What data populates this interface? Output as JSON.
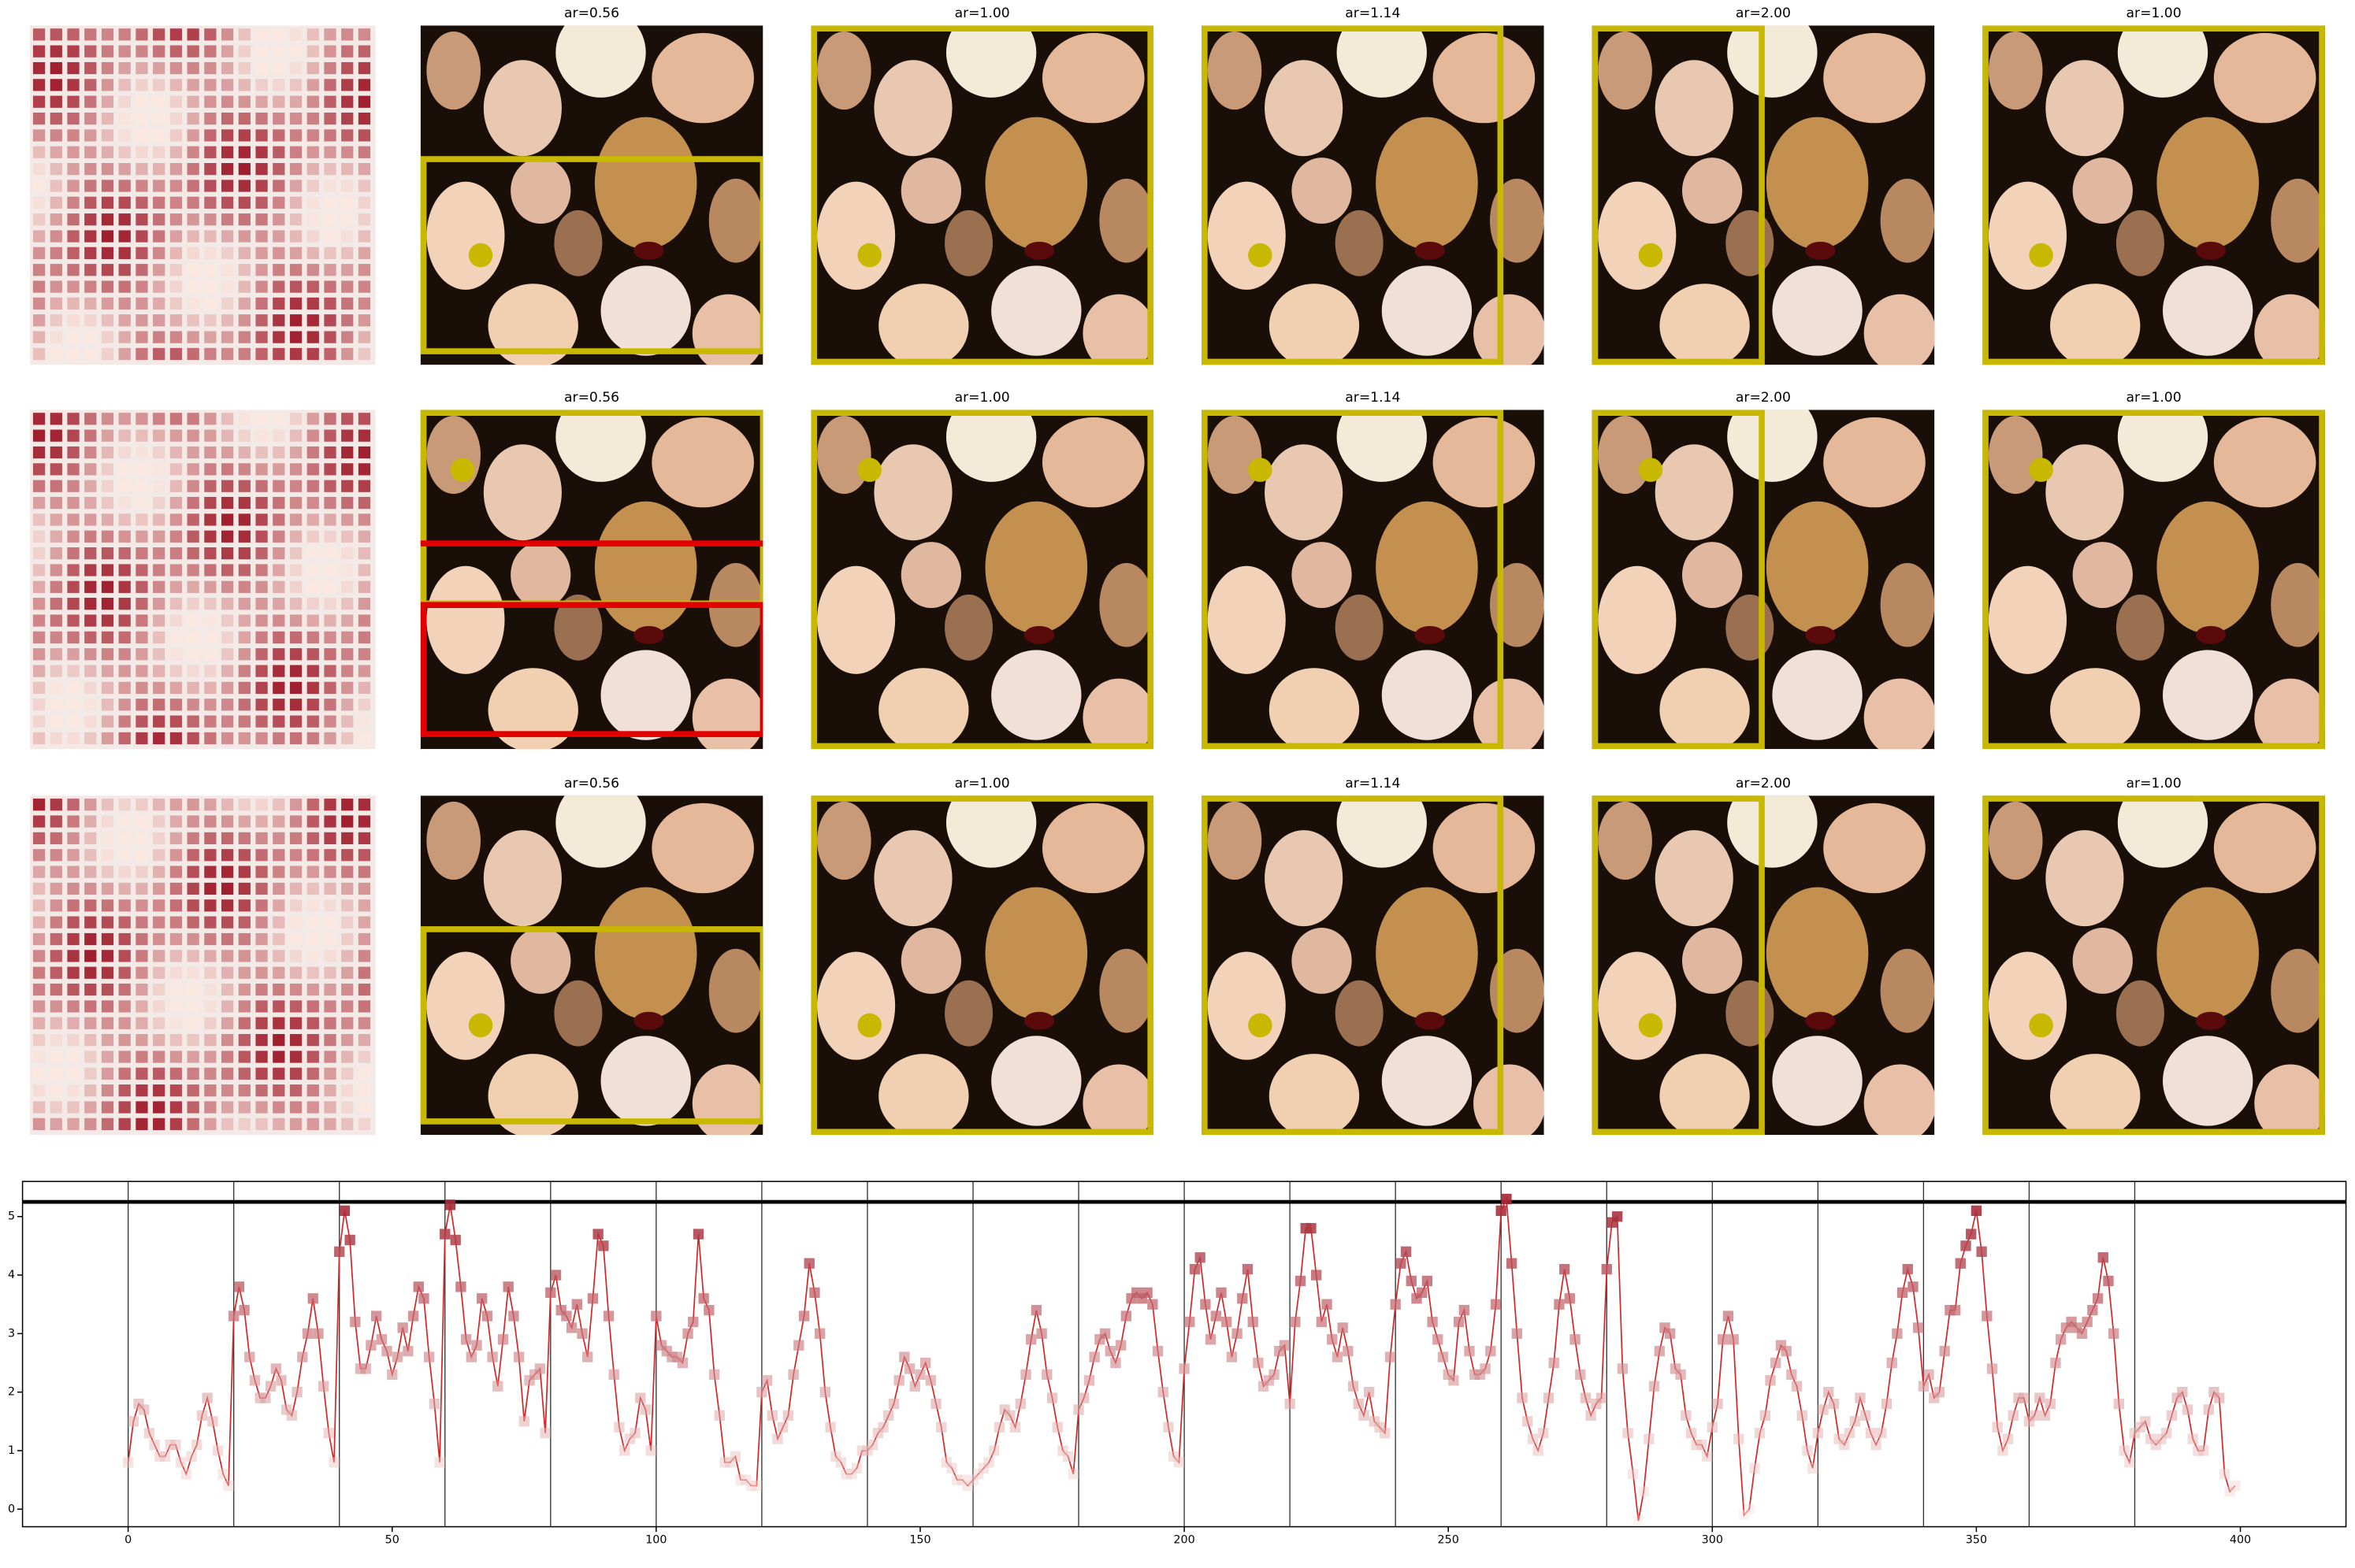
{
  "image_grid": {
    "rows": [
      [
        "ar=0.56",
        "ar=1.00",
        "ar=1.14",
        "ar=2.00",
        "ar=1.00"
      ],
      [
        "ar=0.56",
        "ar=1.00",
        "ar=1.14",
        "ar=2.00",
        "ar=1.00"
      ],
      [
        "ar=0.56",
        "ar=1.00",
        "ar=1.14",
        "ar=2.00",
        "ar=1.00"
      ]
    ]
  },
  "chart_data": {
    "type": "line",
    "xlim": [
      -20,
      420
    ],
    "ylim": [
      -0.3,
      5.6
    ],
    "xticks": [
      0,
      50,
      100,
      150,
      200,
      250,
      300,
      350,
      400
    ],
    "yticks": [
      0,
      1,
      2,
      3,
      4,
      5
    ],
    "hline": 5.25,
    "vlines": [
      0,
      20,
      40,
      60,
      80,
      100,
      120,
      140,
      160,
      180,
      200,
      220,
      240,
      260,
      280,
      300,
      320,
      340,
      360,
      380
    ],
    "x": [
      0,
      1,
      2,
      3,
      4,
      5,
      6,
      7,
      8,
      9,
      10,
      11,
      12,
      13,
      14,
      15,
      16,
      17,
      18,
      19,
      20,
      21,
      22,
      23,
      24,
      25,
      26,
      27,
      28,
      29,
      30,
      31,
      32,
      33,
      34,
      35,
      36,
      37,
      38,
      39,
      40,
      41,
      42,
      43,
      44,
      45,
      46,
      47,
      48,
      49,
      50,
      51,
      52,
      53,
      54,
      55,
      56,
      57,
      58,
      59,
      60,
      61,
      62,
      63,
      64,
      65,
      66,
      67,
      68,
      69,
      70,
      71,
      72,
      73,
      74,
      75,
      76,
      77,
      78,
      79,
      80,
      81,
      82,
      83,
      84,
      85,
      86,
      87,
      88,
      89,
      90,
      91,
      92,
      93,
      94,
      95,
      96,
      97,
      98,
      99,
      100,
      101,
      102,
      103,
      104,
      105,
      106,
      107,
      108,
      109,
      110,
      111,
      112,
      113,
      114,
      115,
      116,
      117,
      118,
      119,
      120,
      121,
      122,
      123,
      124,
      125,
      126,
      127,
      128,
      129,
      130,
      131,
      132,
      133,
      134,
      135,
      136,
      137,
      138,
      139,
      140,
      141,
      142,
      143,
      144,
      145,
      146,
      147,
      148,
      149,
      150,
      151,
      152,
      153,
      154,
      155,
      156,
      157,
      158,
      159,
      160,
      161,
      162,
      163,
      164,
      165,
      166,
      167,
      168,
      169,
      170,
      171,
      172,
      173,
      174,
      175,
      176,
      177,
      178,
      179,
      180,
      181,
      182,
      183,
      184,
      185,
      186,
      187,
      188,
      189,
      190,
      191,
      192,
      193,
      194,
      195,
      196,
      197,
      198,
      199,
      200,
      201,
      202,
      203,
      204,
      205,
      206,
      207,
      208,
      209,
      210,
      211,
      212,
      213,
      214,
      215,
      216,
      217,
      218,
      219,
      220,
      221,
      222,
      223,
      224,
      225,
      226,
      227,
      228,
      229,
      230,
      231,
      232,
      233,
      234,
      235,
      236,
      237,
      238,
      239,
      240,
      241,
      242,
      243,
      244,
      245,
      246,
      247,
      248,
      249,
      250,
      251,
      252,
      253,
      254,
      255,
      256,
      257,
      258,
      259,
      260,
      261,
      262,
      263,
      264,
      265,
      266,
      267,
      268,
      269,
      270,
      271,
      272,
      273,
      274,
      275,
      276,
      277,
      278,
      279,
      280,
      281,
      282,
      283,
      284,
      285,
      286,
      287,
      288,
      289,
      290,
      291,
      292,
      293,
      294,
      295,
      296,
      297,
      298,
      299,
      300,
      301,
      302,
      303,
      304,
      305,
      306,
      307,
      308,
      309,
      310,
      311,
      312,
      313,
      314,
      315,
      316,
      317,
      318,
      319,
      320,
      321,
      322,
      323,
      324,
      325,
      326,
      327,
      328,
      329,
      330,
      331,
      332,
      333,
      334,
      335,
      336,
      337,
      338,
      339,
      340,
      341,
      342,
      343,
      344,
      345,
      346,
      347,
      348,
      349,
      350,
      351,
      352,
      353,
      354,
      355,
      356,
      357,
      358,
      359,
      360,
      361,
      362,
      363,
      364,
      365,
      366,
      367,
      368,
      369,
      370,
      371,
      372,
      373,
      374,
      375,
      376,
      377,
      378,
      379,
      380,
      381,
      382,
      383,
      384,
      385,
      386,
      387,
      388,
      389,
      390,
      391,
      392,
      393,
      394,
      395,
      396,
      397,
      398,
      399
    ],
    "series": [
      {
        "color": "#d62728",
        "values": [
          0.8,
          1.5,
          1.8,
          1.7,
          1.3,
          1.1,
          0.9,
          0.9,
          1.1,
          1.1,
          0.8,
          0.6,
          0.9,
          1.1,
          1.6,
          1.9,
          1.5,
          1.0,
          0.6,
          0.4,
          3.3,
          3.8,
          3.4,
          2.6,
          2.2,
          1.9,
          1.9,
          2.1,
          2.4,
          2.2,
          1.7,
          1.6,
          2.0,
          2.6,
          3.0,
          3.6,
          3.0,
          2.1,
          1.3,
          0.8,
          4.4,
          5.1,
          4.6,
          3.2,
          2.4,
          2.4,
          2.8,
          3.3,
          2.9,
          2.7,
          2.3,
          2.6,
          3.1,
          2.7,
          3.3,
          3.8,
          3.6,
          2.6,
          1.8,
          0.8,
          4.7,
          5.2,
          4.6,
          3.8,
          2.9,
          2.6,
          2.8,
          3.6,
          3.3,
          2.6,
          2.1,
          2.9,
          3.8,
          3.3,
          2.6,
          1.5,
          2.2,
          2.3,
          2.4,
          1.3,
          3.7,
          4.0,
          3.4,
          3.3,
          3.1,
          3.5,
          3.0,
          2.6,
          3.6,
          4.7,
          4.5,
          3.3,
          2.3,
          1.4,
          1.0,
          1.2,
          1.3,
          1.9,
          1.7,
          1.0,
          3.3,
          2.8,
          2.7,
          2.6,
          2.6,
          2.5,
          3.0,
          3.2,
          4.7,
          3.6,
          3.4,
          2.3,
          1.6,
          0.8,
          0.8,
          0.9,
          0.5,
          0.5,
          0.4,
          0.4,
          2.0,
          2.2,
          1.6,
          1.2,
          1.4,
          1.6,
          2.3,
          2.8,
          3.3,
          4.2,
          3.7,
          3.0,
          2.0,
          1.4,
          0.9,
          0.8,
          0.6,
          0.6,
          0.7,
          1.0,
          1.0,
          1.1,
          1.3,
          1.4,
          1.6,
          1.8,
          2.2,
          2.6,
          2.4,
          2.1,
          2.3,
          2.5,
          2.2,
          1.8,
          1.4,
          0.8,
          0.7,
          0.5,
          0.5,
          0.4,
          0.5,
          0.6,
          0.7,
          0.8,
          1.0,
          1.4,
          1.7,
          1.6,
          1.4,
          1.8,
          2.3,
          2.9,
          3.4,
          3.0,
          2.3,
          1.9,
          1.4,
          1.0,
          0.9,
          0.6,
          1.7,
          1.9,
          2.2,
          2.6,
          2.9,
          3.0,
          2.7,
          2.5,
          2.8,
          3.3,
          3.6,
          3.7,
          3.6,
          3.7,
          3.5,
          2.7,
          2.0,
          1.4,
          0.9,
          0.8,
          2.4,
          3.2,
          4.1,
          4.3,
          3.5,
          2.9,
          3.3,
          3.7,
          3.2,
          2.6,
          3.0,
          3.6,
          4.1,
          3.2,
          2.5,
          2.1,
          2.2,
          2.3,
          2.7,
          2.8,
          1.8,
          3.2,
          3.9,
          4.8,
          4.8,
          4.0,
          3.2,
          3.5,
          2.9,
          2.6,
          3.1,
          2.7,
          2.1,
          1.8,
          1.6,
          2.0,
          1.5,
          1.4,
          1.3,
          2.6,
          3.5,
          4.2,
          4.4,
          3.9,
          3.6,
          3.7,
          3.9,
          3.2,
          2.9,
          2.6,
          2.3,
          2.2,
          3.2,
          3.4,
          2.7,
          2.3,
          2.3,
          2.4,
          2.7,
          3.5,
          5.1,
          5.3,
          4.2,
          3.0,
          1.9,
          1.5,
          1.2,
          1.0,
          1.3,
          1.9,
          2.5,
          3.5,
          4.1,
          3.6,
          2.9,
          2.3,
          1.9,
          1.6,
          1.8,
          1.9,
          4.1,
          4.9,
          5.0,
          2.4,
          1.3,
          0.6,
          -0.2,
          0.3,
          1.2,
          2.1,
          2.7,
          3.1,
          3.0,
          2.4,
          2.3,
          1.6,
          1.3,
          1.1,
          1.1,
          0.9,
          1.4,
          1.8,
          2.9,
          3.3,
          2.9,
          1.2,
          -0.1,
          0.0,
          0.7,
          1.3,
          1.6,
          2.2,
          2.5,
          2.8,
          2.7,
          2.3,
          2.1,
          1.6,
          1.0,
          0.7,
          1.3,
          1.7,
          2.0,
          1.8,
          1.2,
          1.1,
          1.3,
          1.5,
          1.9,
          1.6,
          1.3,
          1.1,
          1.3,
          1.8,
          2.5,
          3.0,
          3.7,
          4.1,
          3.8,
          3.1,
          2.1,
          2.3,
          1.9,
          2.0,
          2.7,
          3.4,
          3.4,
          4.2,
          4.5,
          4.7,
          5.1,
          4.4,
          3.3,
          2.4,
          1.4,
          1.0,
          1.2,
          1.6,
          1.9,
          1.9,
          1.5,
          1.6,
          1.9,
          1.6,
          1.8,
          2.5,
          2.9,
          3.1,
          3.2,
          3.1,
          3.0,
          3.2,
          3.4,
          3.6,
          4.3,
          3.9,
          3.0,
          1.8,
          1.0,
          0.8,
          1.3,
          1.4,
          1.5,
          1.2,
          1.1,
          1.2,
          1.3,
          1.6,
          1.9,
          2.0,
          1.7,
          1.2,
          1.0,
          1.0,
          1.7,
          2.0,
          1.9,
          0.6,
          0.3,
          0.4
        ]
      }
    ]
  }
}
